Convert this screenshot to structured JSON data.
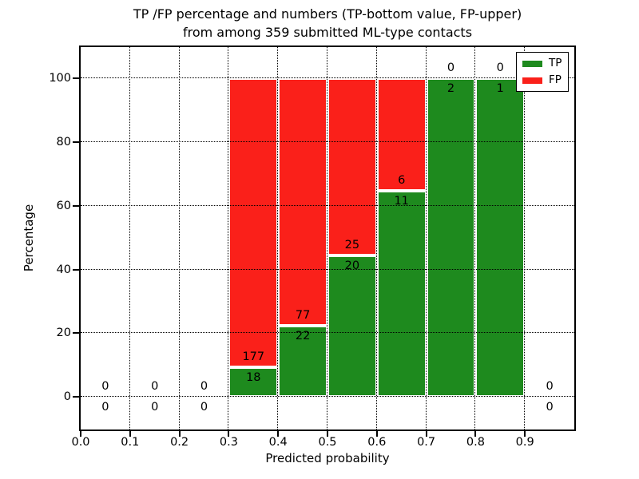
{
  "title": {
    "line1": "TP /FP percentage and numbers (TP-bottom value, FP-upper)",
    "line2": "from among 359 submitted ML-type contacts"
  },
  "chart_data": {
    "type": "bar",
    "variant": "stacked-percentage-histogram",
    "title": "TP /FP percentage and numbers (TP-bottom value, FP-upper) from among 359 submitted ML-type contacts",
    "xlabel": "Predicted probability",
    "ylabel": "Percentage",
    "total_submitted_contacts": 359,
    "annotation_convention": "TP count printed below the TP/FP boundary, FP count printed above it; empty bins show 0 above and 0 below the y=0 line",
    "bin_edges": [
      0.0,
      0.1,
      0.2,
      0.3,
      0.4,
      0.5,
      0.6,
      0.7,
      0.8,
      0.9,
      1.0
    ],
    "categories": [
      "0.0-0.1",
      "0.1-0.2",
      "0.2-0.3",
      "0.3-0.4",
      "0.4-0.5",
      "0.5-0.6",
      "0.6-0.7",
      "0.7-0.8",
      "0.8-0.9",
      "0.9-1.0"
    ],
    "series": [
      {
        "name": "TP",
        "color": "#1e8a1e",
        "counts": [
          0,
          0,
          0,
          18,
          22,
          20,
          11,
          2,
          1,
          0
        ]
      },
      {
        "name": "FP",
        "color": "#fa201a",
        "counts": [
          0,
          0,
          0,
          177,
          77,
          25,
          6,
          0,
          0,
          0
        ]
      }
    ],
    "tp_percent_by_bin": [
      null,
      null,
      null,
      9.2,
      22.2,
      44.4,
      64.7,
      100.0,
      100.0,
      null
    ],
    "xticks": [
      "0.0",
      "0.1",
      "0.2",
      "0.3",
      "0.4",
      "0.5",
      "0.6",
      "0.7",
      "0.8",
      "0.9"
    ],
    "yticks": [
      0,
      20,
      40,
      60,
      80,
      100
    ],
    "xlim": [
      0.0,
      1.0
    ],
    "ylim": [
      -10.3,
      109.8
    ],
    "grid": "dotted",
    "grid_color": "#000000",
    "bar_edge_color": "#ffffff",
    "legend": {
      "position": "upper right",
      "entries": [
        {
          "label": "TP",
          "color": "#1e8a1e"
        },
        {
          "label": "FP",
          "color": "#fa201a"
        }
      ]
    }
  }
}
